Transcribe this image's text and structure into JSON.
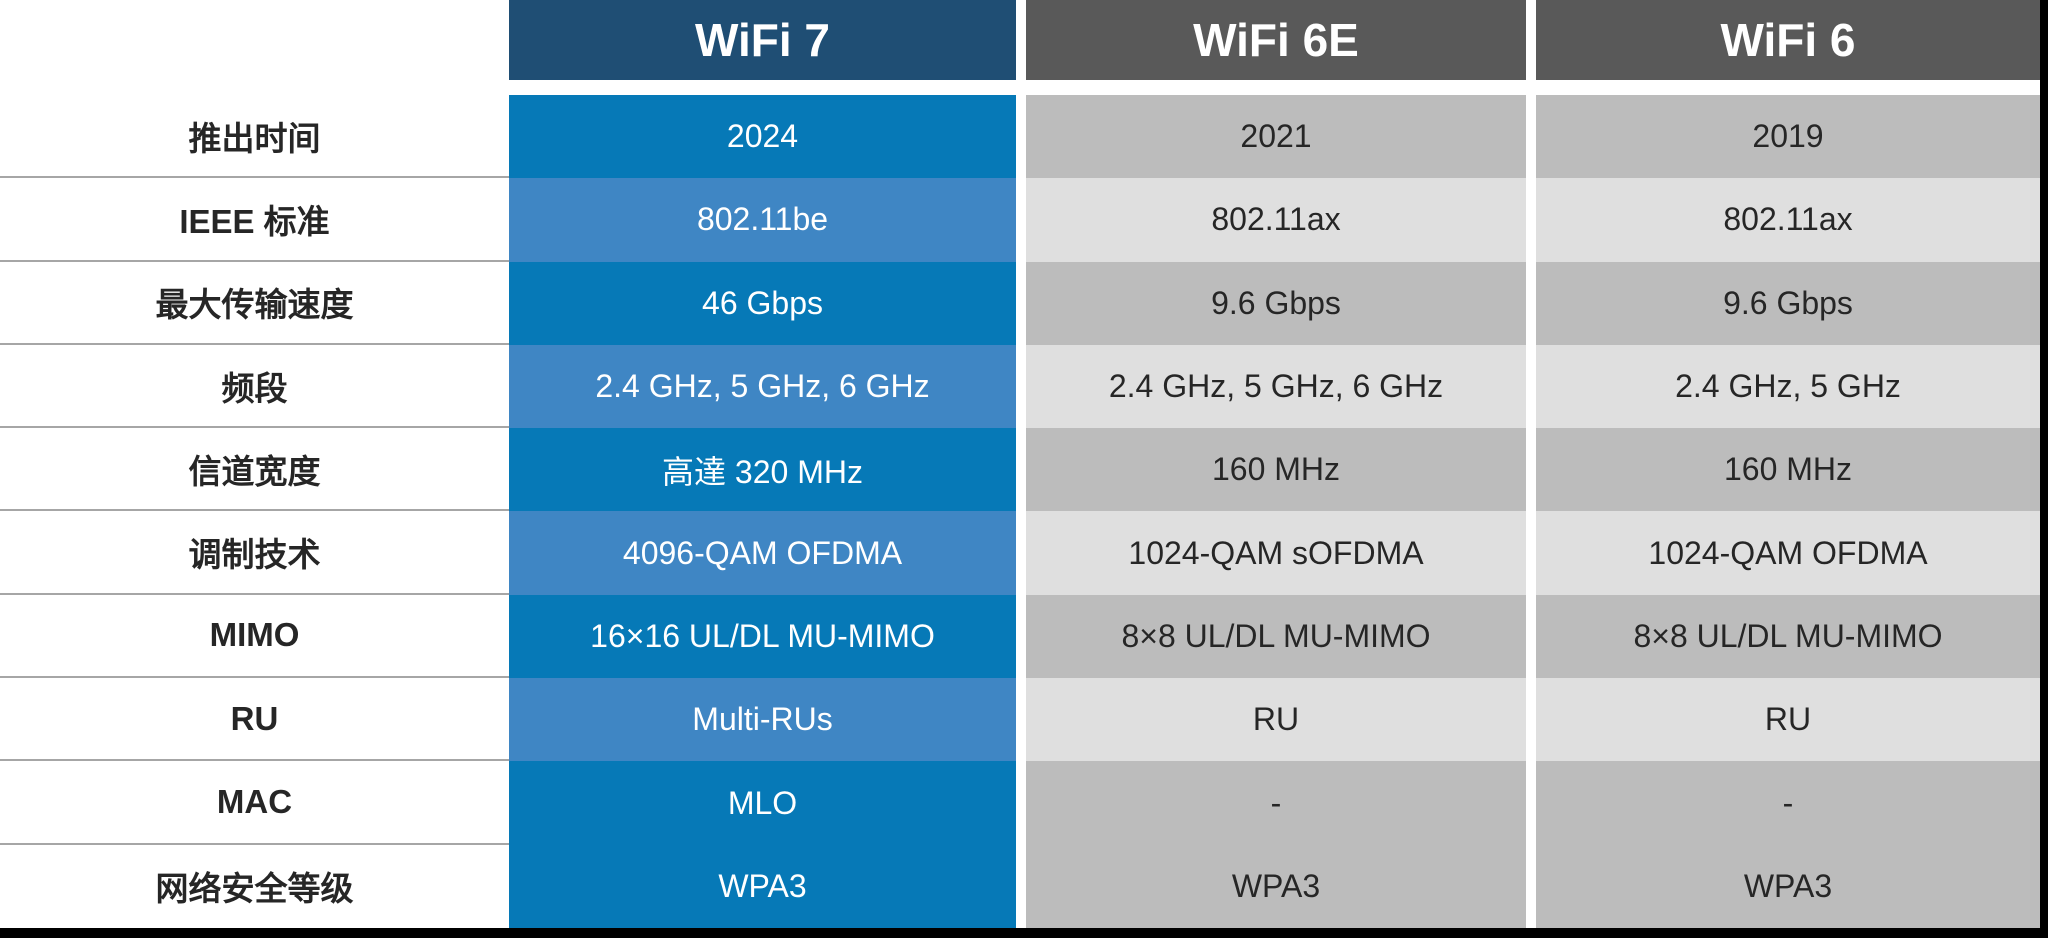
{
  "chart_data": {
    "type": "table",
    "title": "",
    "row_labels": [
      "推出时间",
      "IEEE 标准",
      "最大传输速度",
      "频段",
      "信道宽度",
      "调制技术",
      "MIMO",
      "RU",
      "MAC",
      "网络安全等级"
    ],
    "series": [
      {
        "name": "WiFi 7",
        "values": [
          "2024",
          "802.11be",
          "46 Gbps",
          "2.4 GHz, 5 GHz, 6 GHz",
          "高達 320 MHz",
          "4096-QAM OFDMA",
          "16×16 UL/DL MU-MIMO",
          "Multi-RUs",
          "MLO",
          "WPA3"
        ]
      },
      {
        "name": "WiFi 6E",
        "values": [
          "2021",
          "802.11ax",
          "9.6 Gbps",
          "2.4 GHz, 5 GHz, 6 GHz",
          "160 MHz",
          "1024-QAM sOFDMA",
          "8×8 UL/DL MU-MIMO",
          "RU",
          "-",
          "WPA3"
        ]
      },
      {
        "name": "WiFi 6",
        "values": [
          "2019",
          "802.11ax",
          "9.6 Gbps",
          "2.4 GHz, 5 GHz",
          "160 MHz",
          "1024-QAM OFDMA",
          "8×8 UL/DL MU-MIMO",
          "RU",
          "-",
          "WPA3"
        ]
      }
    ]
  },
  "style": {
    "page": {
      "background": "#FFFFFF",
      "divider": "#A6A6A6",
      "label_text": "#262626",
      "edge_bar": "#000000"
    },
    "row_shades": [
      "primary",
      "secondary",
      "primary",
      "secondary",
      "primary",
      "secondary",
      "primary",
      "secondary",
      "primary",
      "primary"
    ],
    "column_themes": [
      {
        "header_bg": "#1F4E74",
        "header_text": "#FFFFFF",
        "primary_bg": "#0679B7",
        "secondary_bg": "#3F86C4",
        "text_color": "#FFFFFF"
      },
      {
        "header_bg": "#595959",
        "header_text": "#FFFFFF",
        "primary_bg": "#BCBCBC",
        "secondary_bg": "#DFDFDF",
        "text_color": "#262626"
      },
      {
        "header_bg": "#595959",
        "header_text": "#FFFFFF",
        "primary_bg": "#BCBCBC",
        "secondary_bg": "#DFDFDF",
        "text_color": "#262626"
      }
    ]
  }
}
